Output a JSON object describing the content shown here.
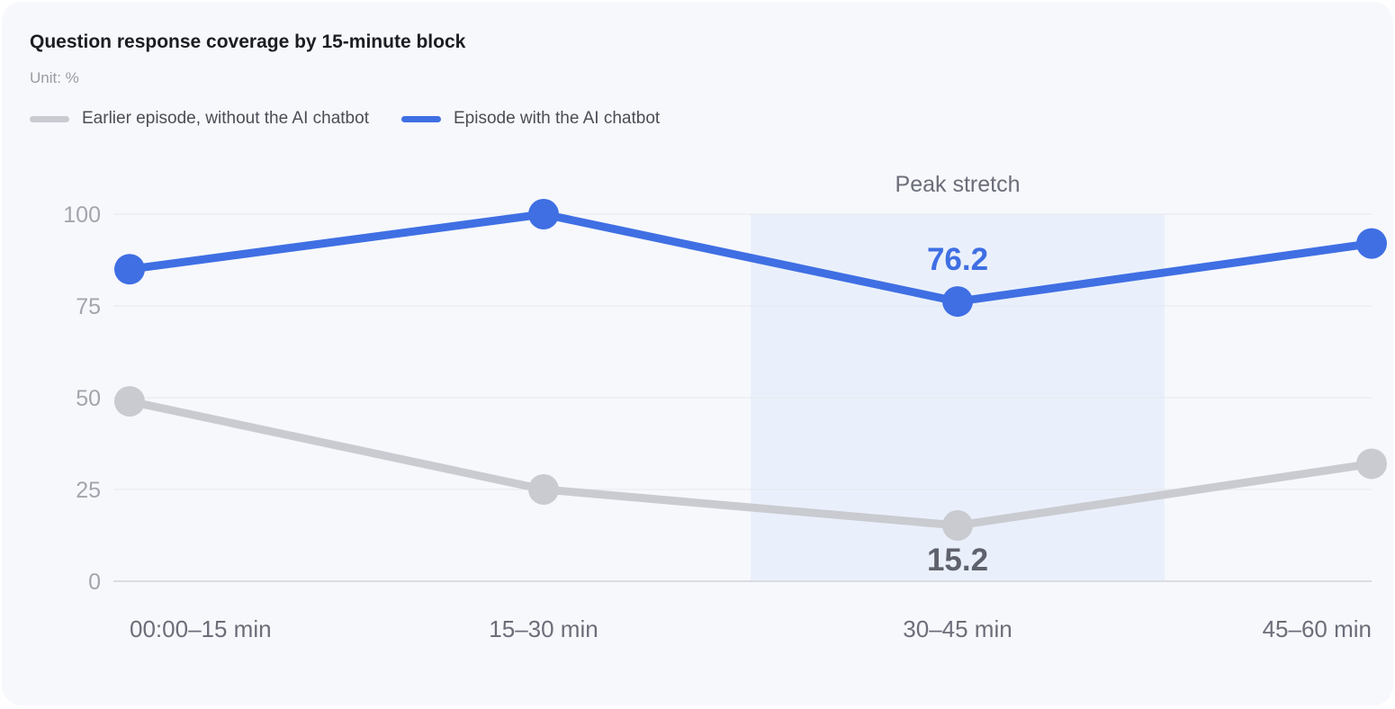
{
  "chart_data": {
    "type": "line",
    "title": "Question response coverage by 15-minute block",
    "subtitle": "Unit: %",
    "categories": [
      "00:00–15 min",
      "15–30 min",
      "30–45 min",
      "45–60 min"
    ],
    "series": [
      {
        "name": "Earlier episode, without the AI chatbot",
        "color": "#c9cbd1",
        "values": [
          49,
          25,
          15.2,
          32
        ]
      },
      {
        "name": "Episode with the AI chatbot",
        "color": "#3f6fe3",
        "values": [
          85,
          100,
          76.2,
          92
        ]
      }
    ],
    "ylim": [
      0,
      100
    ],
    "yticks": [
      0,
      25,
      50,
      75,
      100
    ],
    "grid": true,
    "legend": "top-left",
    "highlight": {
      "label": "Peak stretch",
      "from": 1.5,
      "to": 2.5
    },
    "annotations": [
      {
        "series": 1,
        "index": 2,
        "text": "76.2"
      },
      {
        "series": 0,
        "index": 2,
        "text": "15.2"
      }
    ]
  }
}
